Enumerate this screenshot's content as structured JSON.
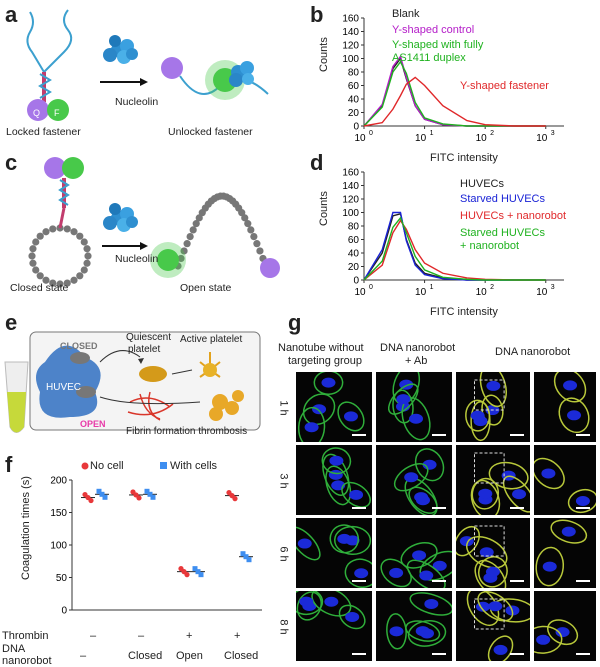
{
  "panels": {
    "a": {
      "letter": "a",
      "locked_label": "Locked fastener",
      "unlocked_label": "Unlocked fastener",
      "arrow_label": "Nucleolin",
      "q": "Q",
      "f": "F"
    },
    "b": {
      "letter": "b",
      "xlabel": "FITC intensity",
      "ylabel": "Counts",
      "legend": [
        {
          "text": "Blank",
          "color": "#222222"
        },
        {
          "text": "Y-shaped control",
          "color": "#b41cc8"
        },
        {
          "text": "Y-shaped with fully",
          "color": "#1fb21f"
        },
        {
          "text": "AS1411 duplex",
          "color": "#1fb21f"
        }
      ],
      "extra_label": {
        "text": "Y-shaped fastener",
        "color": "#e0282a"
      },
      "yticks": [
        "0",
        "20",
        "40",
        "60",
        "80",
        "100",
        "120",
        "140",
        "160"
      ],
      "xticks": [
        "10",
        "10",
        "10",
        "10"
      ],
      "xexp": [
        "0",
        "1",
        "2",
        "3"
      ]
    },
    "c": {
      "letter": "c",
      "closed_label": "Closed state",
      "open_label": "Open state",
      "arrow_label": "Nucleolin"
    },
    "d": {
      "letter": "d",
      "xlabel": "FITC intensity",
      "ylabel": "Counts",
      "legend": [
        {
          "text": "HUVECs",
          "color": "#222222"
        },
        {
          "text": "Starved HUVECs",
          "color": "#1a23d6"
        },
        {
          "text": "HUVECs + nanorobot",
          "color": "#e0282a"
        },
        {
          "text": "Starved HUVECs",
          "color": "#1fb21f"
        },
        {
          "text": "+ nanorobot",
          "color": "#1fb21f"
        }
      ],
      "yticks": [
        "0",
        "20",
        "40",
        "60",
        "80",
        "100",
        "120",
        "140",
        "160"
      ],
      "xticks": [
        "10",
        "10",
        "10",
        "10"
      ],
      "xexp": [
        "0",
        "1",
        "2",
        "3"
      ]
    },
    "e": {
      "letter": "e",
      "closed": "CLOSED",
      "open": "OPEN",
      "huvec": "HUVEC",
      "quiescent": "Quiescent",
      "platelet": "platelet",
      "active": "Active platelet",
      "fibrin": "Fibrin formation thrombosis"
    },
    "f": {
      "letter": "f",
      "ylabel": "Coagulation times (s)",
      "legend_no": "No cell",
      "legend_with": "With cells",
      "yticks": [
        "0",
        "50",
        "100",
        "150",
        "200"
      ],
      "row1_label": "Thrombin",
      "row2_label": "DNA",
      "row3_label": "nanorobot",
      "thrombin": [
        "–",
        "–",
        "+",
        "+"
      ],
      "dna": [
        "–",
        "Closed",
        "Open",
        "Closed"
      ]
    },
    "g": {
      "letter": "g",
      "col1": "Nanotube without",
      "col1b": "targeting group",
      "col2": "DNA nanorobot",
      "col2b": "+ Ab",
      "col3": "DNA nanorobot",
      "rows": [
        "1 h",
        "3 h",
        "6 h",
        "8 h"
      ]
    }
  },
  "chart_data": [
    {
      "type": "line",
      "title": "",
      "xlabel": "FITC intensity",
      "ylabel": "Counts",
      "x_scale": "log",
      "xlim": [
        1,
        2000
      ],
      "ylim": [
        0,
        160
      ],
      "x": [
        1,
        2,
        3,
        4,
        5,
        7,
        10,
        20,
        50,
        100,
        300,
        1000
      ],
      "series": [
        {
          "name": "Blank",
          "color": "#222222",
          "values": [
            0,
            30,
            85,
            100,
            70,
            30,
            10,
            2,
            0,
            0,
            0,
            0
          ]
        },
        {
          "name": "Y-shaped control",
          "color": "#b41cc8",
          "values": [
            0,
            32,
            88,
            103,
            72,
            30,
            10,
            2,
            0,
            0,
            0,
            0
          ]
        },
        {
          "name": "Y-shaped with fully AS1411 duplex",
          "color": "#1fb21f",
          "values": [
            0,
            28,
            80,
            95,
            78,
            35,
            12,
            3,
            0,
            0,
            0,
            0
          ]
        },
        {
          "name": "Y-shaped fastener",
          "color": "#e0282a",
          "values": [
            0,
            5,
            25,
            45,
            62,
            72,
            60,
            30,
            8,
            2,
            0,
            0
          ]
        }
      ]
    },
    {
      "type": "line",
      "title": "",
      "xlabel": "FITC intensity",
      "ylabel": "Counts",
      "x_scale": "log",
      "xlim": [
        1,
        2000
      ],
      "ylim": [
        0,
        160
      ],
      "x": [
        1,
        2,
        3,
        4,
        5,
        7,
        10,
        20,
        50,
        100,
        300,
        1000
      ],
      "series": [
        {
          "name": "HUVECs",
          "color": "#222222",
          "values": [
            0,
            40,
            95,
            98,
            60,
            25,
            10,
            3,
            0,
            0,
            0,
            0
          ]
        },
        {
          "name": "Starved HUVECs",
          "color": "#1a23d6",
          "values": [
            0,
            45,
            100,
            100,
            58,
            22,
            8,
            2,
            0,
            0,
            0,
            0
          ]
        },
        {
          "name": "HUVECs + nanorobot",
          "color": "#e0282a",
          "values": [
            0,
            22,
            70,
            88,
            75,
            45,
            25,
            10,
            3,
            1,
            0,
            0
          ]
        },
        {
          "name": "Starved HUVECs + nanorobot",
          "color": "#1fb21f",
          "values": [
            0,
            28,
            78,
            92,
            70,
            35,
            15,
            4,
            1,
            0,
            0,
            0
          ]
        }
      ]
    },
    {
      "type": "scatter",
      "title": "",
      "xlabel": "",
      "ylabel": "Coagulation times (s)",
      "ylim": [
        0,
        200
      ],
      "categories": [
        "–/–",
        "–/Closed",
        "+/Open",
        "+/Closed"
      ],
      "series": [
        {
          "name": "No cell",
          "color": "#e8383a",
          "values": [
            173,
            177,
            59,
            176
          ]
        },
        {
          "name": "With cells",
          "color": "#3e8ef0",
          "values": [
            178,
            178,
            59,
            82
          ]
        }
      ]
    }
  ]
}
